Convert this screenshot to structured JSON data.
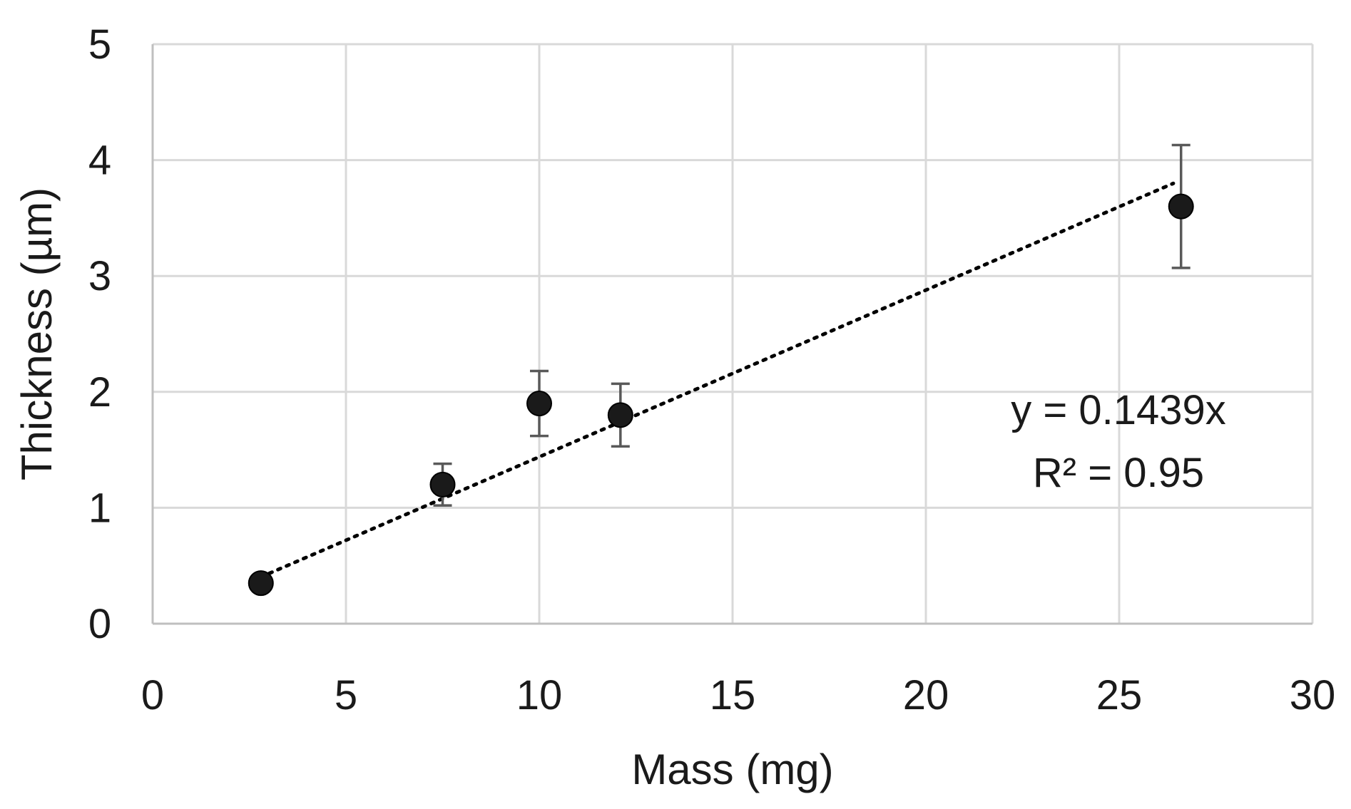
{
  "chart_data": {
    "type": "scatter",
    "title": "",
    "xlabel": "Mass (mg)",
    "ylabel": "Thickness (µm)",
    "xlim": [
      0,
      30
    ],
    "ylim": [
      0,
      5
    ],
    "x_ticks": [
      0,
      5,
      10,
      15,
      20,
      25,
      30
    ],
    "y_ticks": [
      0,
      1,
      2,
      3,
      4,
      5
    ],
    "grid": true,
    "colors": {
      "marker": "#1a1a1a",
      "error_bar": "#595959",
      "grid": "#d9d9d9",
      "trendline": "#000000"
    },
    "series": [
      {
        "name": "Thickness",
        "points": [
          {
            "x": 2.8,
            "y": 0.35,
            "err": 0.0
          },
          {
            "x": 7.5,
            "y": 1.2,
            "err": 0.18
          },
          {
            "x": 10.0,
            "y": 1.9,
            "err": 0.28
          },
          {
            "x": 12.1,
            "y": 1.8,
            "err": 0.27
          },
          {
            "x": 26.6,
            "y": 3.6,
            "err": 0.53
          }
        ]
      }
    ],
    "trendline": {
      "type": "linear",
      "style": "dotted",
      "slope": 0.1439,
      "intercept": 0,
      "x_range": [
        2.8,
        26.4
      ]
    },
    "annotations": {
      "equation": "y = 0.1439x",
      "r_squared": "R² = 0.95"
    }
  }
}
